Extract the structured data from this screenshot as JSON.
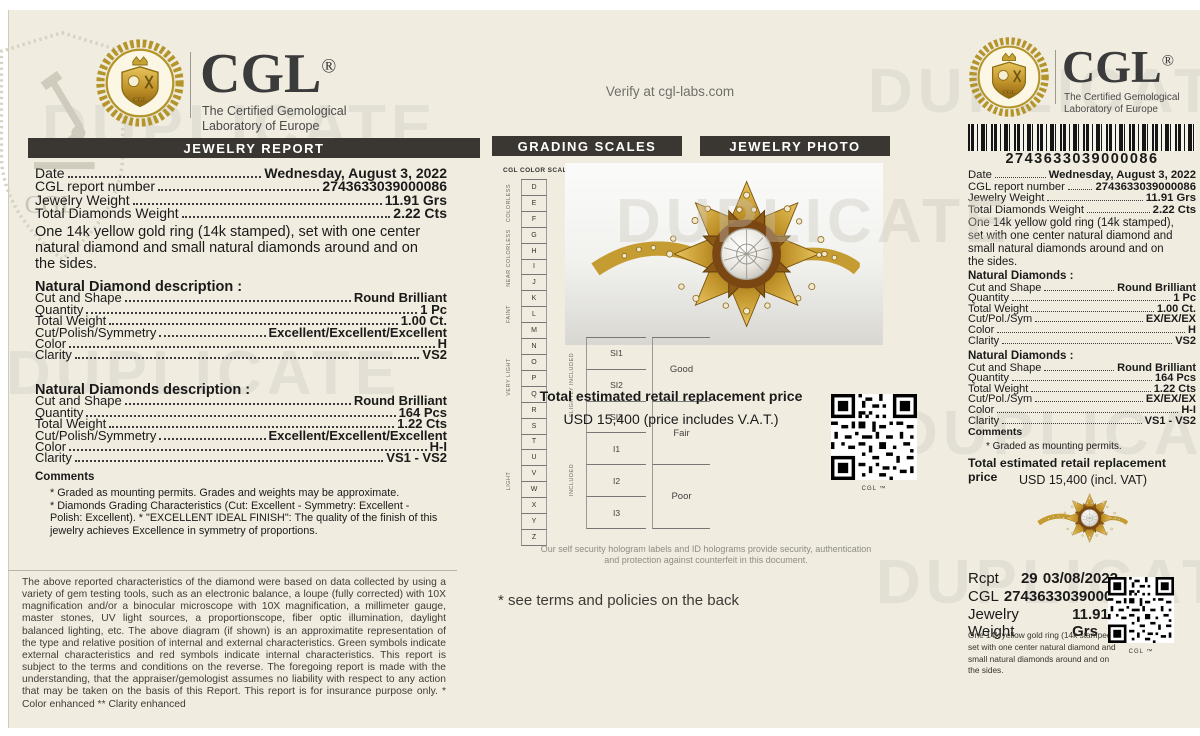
{
  "watermark": "DUPLICATE",
  "brand": {
    "name": "CGL",
    "reg": "®",
    "subtitle1": "The Certified Gemological",
    "subtitle2": "Laboratory of Europe"
  },
  "left": {
    "bar": "JEWELRY REPORT",
    "info": [
      {
        "label": "Date",
        "value": "Wednesday, August 3, 2022"
      },
      {
        "label": "CGL report number",
        "value": "2743633039000086"
      },
      {
        "label": "Jewelry Weight",
        "value": "11.91 Grs"
      },
      {
        "label": "Total Diamonds Weight",
        "value": "2.22 Cts"
      }
    ],
    "description": "One 14k yellow gold ring (14k stamped), set with one center natural diamond and small natural diamonds around and on the sides.",
    "sections": [
      {
        "title": "Natural Diamond description :",
        "rows": [
          {
            "label": "Cut and Shape",
            "value": "Round Brilliant"
          },
          {
            "label": "Quantity",
            "value": "1 Pc"
          },
          {
            "label": "Total Weight",
            "value": "1.00 Ct."
          },
          {
            "label": "Cut/Polish/Symmetry",
            "value": "Excellent/Excellent/Excellent"
          },
          {
            "label": "Color",
            "value": "H"
          },
          {
            "label": "Clarity",
            "value": "VS2"
          }
        ]
      },
      {
        "title": "Natural Diamonds description :",
        "rows": [
          {
            "label": "Cut and Shape",
            "value": "Round Brilliant"
          },
          {
            "label": "Quantity",
            "value": "164 Pcs"
          },
          {
            "label": "Total Weight",
            "value": "1.22 Cts"
          },
          {
            "label": "Cut/Polish/Symmetry",
            "value": "Excellent/Excellent/Excellent"
          },
          {
            "label": "Color",
            "value": "H-I"
          },
          {
            "label": "Clarity",
            "value": "VS1 - VS2"
          }
        ]
      }
    ],
    "comments_title": "Comments",
    "comments": [
      "* Graded as mounting permits.  Grades and weights may be approximate.",
      "* Diamonds Grading Characteristics (Cut: Excellent - Symmetry: Excellent - Polish: Excellent). * \"EXCELLENT IDEAL FINISH\": The quality of the finish of this jewelry achieves Excellence in symmetry of proportions."
    ],
    "fine_print": "The above reported characteristics of the diamond were based on data collected by using a variety of gem testing tools, such as an electronic balance, a loupe (fully corrected) with 10X magnification and/or a binocular microscope with 10X magnification, a millimeter gauge, master stones, UV light sources, a proportionscope, fiber optic illumination, daylight balanced lighting, etc. The above diagram (if shown) is an approximatite representation of the type and relative position of internal and external characteristics. Green symbols indicate external characteristics and red symbols indicate internal characteristics. This report is subject to the terms and conditions on the reverse. The foregoing report is made with the understanding, that the appraiser/gemologist assumes no liability with respect to any action that may be taken on the basis of this Report. This report is for insurance purpose only. * Color enhanced ** Clarity enhanced"
  },
  "middle": {
    "verify": "Verify at cgl-labs.com",
    "bar_left": "GRADING SCALES",
    "bar_right": "JEWELRY PHOTO",
    "color_scale": {
      "title": "CGL COLOR SCALE",
      "letters": [
        "D",
        "E",
        "F",
        "G",
        "H",
        "I",
        "J",
        "K",
        "L",
        "M",
        "N",
        "O",
        "P",
        "Q",
        "R",
        "S",
        "T",
        "U",
        "V",
        "W",
        "X",
        "Y",
        "Z"
      ],
      "groups": [
        "COLORLESS",
        "NEAR COLORLESS",
        "FAINT",
        "VERY LIGHT",
        "LIGHT"
      ]
    },
    "clarity_scale": {
      "cells": [
        "SI1",
        "SI2",
        "SI3",
        "I1",
        "I2",
        "I3"
      ],
      "groups": [
        "SLIGHTLY INCLUDED",
        "INCLUDED"
      ]
    },
    "cut_scale": [
      "Good",
      "Fair",
      "Poor"
    ],
    "price_label": "Total estimated retail replacement price",
    "price_value": "USD 15,400 (price includes V.A.T.)",
    "qr_caption": "CGL ™",
    "hologram_note": "Our self security hologram labels and ID holograms provide security, authentication and protection against counterfeit in this document.",
    "terms_note": "* see terms and policies on the back"
  },
  "right": {
    "barcode_number": "2743633039000086",
    "info": [
      {
        "label": "Date",
        "value": "Wednesday, August 3, 2022"
      },
      {
        "label": "CGL report number",
        "value": "2743633039000086"
      },
      {
        "label": "Jewelry Weight",
        "value": "11.91 Grs"
      },
      {
        "label": "Total Diamonds Weight",
        "value": "2.22 Cts"
      }
    ],
    "description": "One 14k yellow gold ring (14k stamped), set with one center natural diamond and small natural diamonds around and on the sides.",
    "sections": [
      {
        "title": "Natural Diamonds :",
        "rows": [
          {
            "label": "Cut and Shape",
            "value": "Round Brilliant"
          },
          {
            "label": "Quantity",
            "value": "1 Pc"
          },
          {
            "label": "Total Weight",
            "value": "1.00 Ct."
          },
          {
            "label": "Cut/Pol./Sym",
            "value": "EX/EX/EX"
          },
          {
            "label": "Color",
            "value": "H"
          },
          {
            "label": "Clarity",
            "value": "VS2"
          }
        ]
      },
      {
        "title": "Natural Diamonds :",
        "rows": [
          {
            "label": "Cut and Shape",
            "value": "Round Brilliant"
          },
          {
            "label": "Quantity",
            "value": "164 Pcs"
          },
          {
            "label": "Total Weight",
            "value": "1.22 Cts"
          },
          {
            "label": "Cut/Pol./Sym",
            "value": "EX/EX/EX"
          },
          {
            "label": "Color",
            "value": "H-I"
          },
          {
            "label": "Clarity",
            "value": "VS1 - VS2"
          }
        ]
      }
    ],
    "comments_title": "Comments",
    "comment": "* Graded as mounting permits.",
    "price_label": "Total estimated retail replacement price",
    "price_value": "USD 15,400 (incl. VAT)",
    "receipt": {
      "rcpt_label": "Rcpt",
      "rcpt_no": "29",
      "rcpt_date": "03/08/2022",
      "cgl_label": "CGL",
      "cgl_number": "2743633039000086",
      "weight_label": "Jewelry Weight",
      "weight_value": "11.91 Grs",
      "description": "One 14k yellow gold ring (14k stamped), set with one center natural diamond and small natural diamonds around and on the sides.",
      "qr_caption": "CGL ™"
    }
  },
  "colors": {
    "paper": "#f0ecdf",
    "header_bar": "#3a3733",
    "gold": "#b4952b",
    "watermark": "#dedbd1"
  }
}
